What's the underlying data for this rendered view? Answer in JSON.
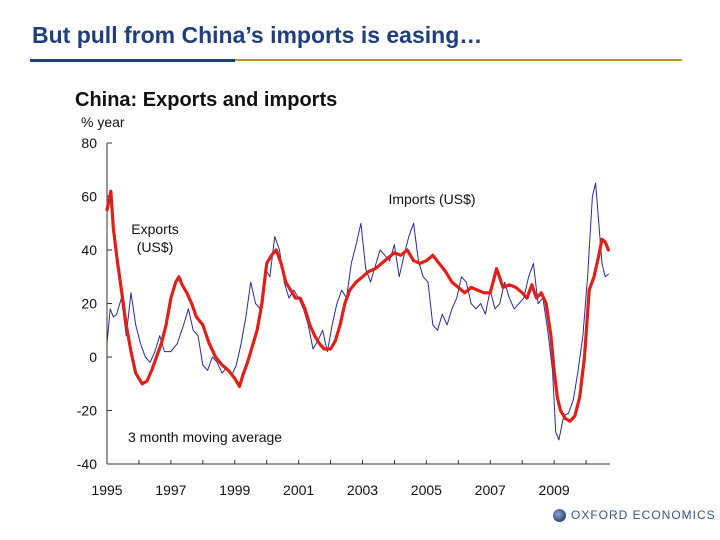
{
  "slide": {
    "title": "But pull from China’s imports is easing…",
    "logo_text": "OXFORD ECONOMICS"
  },
  "colors": {
    "title": "#1f3f7a",
    "rule": "#b8962e",
    "exports": "#e0201b",
    "imports": "#2b2b9c"
  },
  "chart_data": {
    "type": "line",
    "title": "China: Exports and imports",
    "ylabel": "% year",
    "xlabel": "",
    "ylim": [
      -40,
      80
    ],
    "xlim": [
      1995,
      2010.75
    ],
    "yticks": [
      80,
      60,
      40,
      20,
      0,
      -20,
      -40
    ],
    "xticks": [
      "1995",
      "1997",
      "1999",
      "2001",
      "2003",
      "2005",
      "2007",
      "2009"
    ],
    "annotation": "3 month moving average",
    "grid": false,
    "series": [
      {
        "name": "Exports (US$)",
        "label_lines": [
          "Exports",
          "(US$)"
        ],
        "color": "#e0201b",
        "x": [
          1995.0,
          1995.12,
          1995.2,
          1995.3,
          1995.45,
          1995.6,
          1995.75,
          1995.9,
          1996.1,
          1996.25,
          1996.4,
          1996.55,
          1996.7,
          1996.85,
          1997.0,
          1997.15,
          1997.25,
          1997.35,
          1997.5,
          1997.65,
          1997.8,
          1998.0,
          1998.2,
          1998.4,
          1998.6,
          1998.8,
          1999.0,
          1999.15,
          1999.25,
          1999.4,
          1999.55,
          1999.7,
          1999.85,
          2000.0,
          2000.15,
          2000.3,
          2000.45,
          2000.6,
          2000.75,
          2000.9,
          2001.05,
          2001.2,
          2001.35,
          2001.5,
          2001.65,
          2001.8,
          2002.0,
          2002.15,
          2002.3,
          2002.45,
          2002.6,
          2002.8,
          2003.0,
          2003.2,
          2003.4,
          2003.6,
          2003.8,
          2004.0,
          2004.2,
          2004.4,
          2004.6,
          2004.8,
          2005.0,
          2005.2,
          2005.4,
          2005.6,
          2005.8,
          2006.0,
          2006.2,
          2006.4,
          2006.6,
          2006.8,
          2007.0,
          2007.2,
          2007.4,
          2007.6,
          2007.8,
          2008.0,
          2008.15,
          2008.3,
          2008.45,
          2008.6,
          2008.75,
          2008.9,
          2009.0,
          2009.1,
          2009.2,
          2009.35,
          2009.5,
          2009.65,
          2009.8,
          2009.95,
          2010.1,
          2010.25,
          2010.4,
          2010.5,
          2010.6,
          2010.7
        ],
        "y": [
          55,
          62,
          48,
          38,
          25,
          12,
          2,
          -6,
          -10,
          -9,
          -5,
          0,
          5,
          12,
          22,
          28,
          30,
          27,
          24,
          20,
          15,
          12,
          5,
          0,
          -3,
          -5,
          -8,
          -11,
          -7,
          -2,
          4,
          10,
          20,
          35,
          38,
          40,
          35,
          28,
          25,
          22,
          22,
          18,
          12,
          8,
          5,
          3,
          3,
          6,
          12,
          20,
          25,
          28,
          30,
          32,
          33,
          35,
          37,
          39,
          38,
          40,
          36,
          35,
          36,
          38,
          35,
          32,
          28,
          26,
          24,
          26,
          25,
          24,
          24,
          33,
          26,
          27,
          26,
          24,
          22,
          27,
          22,
          24,
          20,
          8,
          -5,
          -15,
          -20,
          -23,
          -24,
          -22,
          -15,
          0,
          25,
          30,
          38,
          44,
          43,
          40
        ]
      },
      {
        "name": "Imports (US$)",
        "label_lines": [
          "Imports (US$)"
        ],
        "color": "#2b2b9c",
        "x": [
          1995.0,
          1995.1,
          1995.2,
          1995.3,
          1995.45,
          1995.6,
          1995.75,
          1995.9,
          1996.05,
          1996.2,
          1996.35,
          1996.5,
          1996.65,
          1996.8,
          1997.0,
          1997.2,
          1997.4,
          1997.55,
          1997.7,
          1997.85,
          1998.0,
          1998.15,
          1998.3,
          1998.45,
          1998.6,
          1998.75,
          1998.9,
          1999.05,
          1999.2,
          1999.35,
          1999.5,
          1999.65,
          1999.8,
          1999.95,
          2000.1,
          2000.25,
          2000.4,
          2000.55,
          2000.7,
          2000.85,
          2001.0,
          2001.15,
          2001.3,
          2001.45,
          2001.6,
          2001.75,
          2001.9,
          2002.05,
          2002.2,
          2002.35,
          2002.5,
          2002.65,
          2002.8,
          2002.95,
          2003.1,
          2003.25,
          2003.4,
          2003.55,
          2003.7,
          2003.85,
          2004.0,
          2004.15,
          2004.3,
          2004.45,
          2004.6,
          2004.75,
          2004.9,
          2005.05,
          2005.2,
          2005.35,
          2005.5,
          2005.65,
          2005.8,
          2005.95,
          2006.1,
          2006.25,
          2006.4,
          2006.55,
          2006.7,
          2006.85,
          2007.0,
          2007.15,
          2007.3,
          2007.45,
          2007.6,
          2007.75,
          2007.9,
          2008.05,
          2008.2,
          2008.35,
          2008.5,
          2008.65,
          2008.8,
          2008.95,
          2009.05,
          2009.15,
          2009.3,
          2009.45,
          2009.6,
          2009.75,
          2009.9,
          2010.05,
          2010.2,
          2010.3,
          2010.4,
          2010.5,
          2010.6,
          2010.7
        ],
        "y": [
          5,
          18,
          15,
          16,
          22,
          8,
          24,
          12,
          5,
          0,
          -2,
          2,
          8,
          2,
          2,
          5,
          12,
          18,
          10,
          8,
          -3,
          -5,
          0,
          -2,
          -6,
          -4,
          -7,
          -3,
          5,
          15,
          28,
          20,
          18,
          33,
          30,
          45,
          40,
          28,
          22,
          25,
          22,
          18,
          12,
          3,
          6,
          10,
          2,
          12,
          20,
          25,
          22,
          35,
          42,
          50,
          33,
          28,
          34,
          40,
          38,
          36,
          42,
          30,
          38,
          45,
          50,
          36,
          30,
          28,
          12,
          10,
          16,
          12,
          18,
          22,
          30,
          28,
          20,
          18,
          20,
          16,
          25,
          18,
          20,
          28,
          22,
          18,
          20,
          22,
          30,
          35,
          20,
          22,
          10,
          -5,
          -28,
          -31,
          -22,
          -21,
          -16,
          -5,
          8,
          30,
          60,
          65,
          50,
          35,
          30,
          31
        ]
      }
    ]
  }
}
